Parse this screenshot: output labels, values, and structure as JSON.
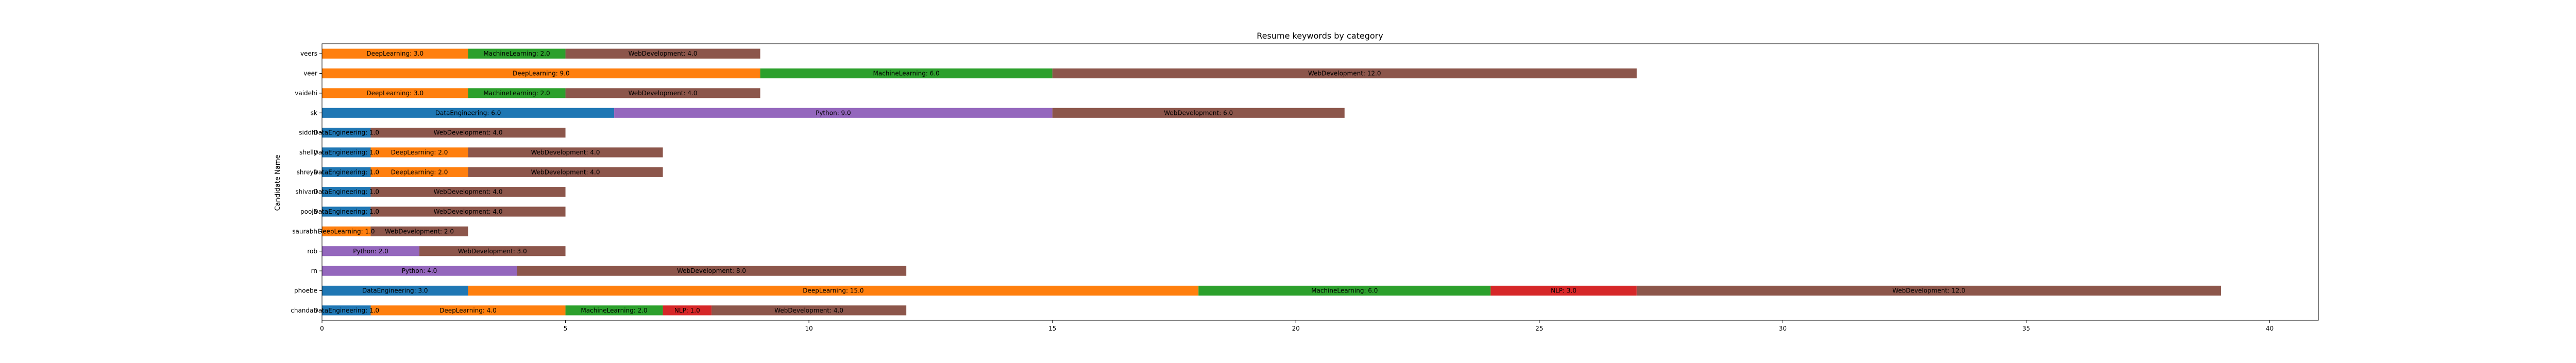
{
  "chart_data": {
    "type": "bar",
    "orientation": "horizontal",
    "stacked": true,
    "title": "Resume keywords by category",
    "xlabel": "",
    "ylabel": "Candidate Name",
    "xlim": [
      0,
      41
    ],
    "xticks": [
      0,
      5,
      10,
      15,
      20,
      25,
      30,
      35,
      40
    ],
    "grid": false,
    "legend": "none",
    "categories": [
      "chandan",
      "phoebe",
      "rn",
      "rob",
      "saurabh",
      "pooja",
      "shivani",
      "shreya",
      "shelly",
      "siddhi",
      "sk",
      "vaidehi",
      "veer",
      "veers"
    ],
    "series": [
      {
        "name": "DataEngineering",
        "color": "#1f77b4",
        "values": [
          1,
          3,
          0,
          0,
          0,
          1,
          1,
          1,
          1,
          1,
          6,
          0,
          0,
          0
        ]
      },
      {
        "name": "DeepLearning",
        "color": "#ff7f0e",
        "values": [
          4,
          15,
          0,
          0,
          1,
          0,
          0,
          2,
          2,
          0,
          0,
          3,
          9,
          3
        ]
      },
      {
        "name": "MachineLearning",
        "color": "#2ca02c",
        "values": [
          2,
          6,
          0,
          0,
          0,
          0,
          0,
          0,
          0,
          0,
          0,
          2,
          6,
          2
        ]
      },
      {
        "name": "NLP",
        "color": "#d62728",
        "values": [
          1,
          3,
          0,
          0,
          0,
          0,
          0,
          0,
          0,
          0,
          0,
          0,
          0,
          0
        ]
      },
      {
        "name": "Python",
        "color": "#9467bd",
        "values": [
          0,
          0,
          4,
          2,
          0,
          0,
          0,
          0,
          0,
          0,
          9,
          0,
          0,
          0
        ]
      },
      {
        "name": "WebDevelopment",
        "color": "#8c564b",
        "values": [
          4,
          12,
          8,
          3,
          2,
          4,
          4,
          4,
          4,
          4,
          6,
          4,
          12,
          4
        ]
      }
    ],
    "segment_labels": [
      [
        "DataEngineering: 1.0",
        "DeepLearning: 4.0",
        "MachineLearning: 2.0",
        "NLP: 1.0",
        "",
        "WebDevelopment: 4.0"
      ],
      [
        "DataEngineering: 3.0",
        "DeepLearning: 15.0",
        "MachineLearning: 6.0",
        "NLP: 3.0",
        "",
        "WebDevelopment: 12.0"
      ],
      [
        "",
        "",
        "",
        "",
        "Python: 4.0",
        "WebDevelopment: 8.0"
      ],
      [
        "",
        "",
        "",
        "",
        "Python: 2.0",
        "WebDevelopment: 3.0"
      ],
      [
        "",
        "DeepLearning: 1.0",
        "",
        "",
        "",
        "WebDevelopment: 2.0"
      ],
      [
        "DataEngineering: 1.0",
        "",
        "",
        "",
        "",
        "WebDevelopment: 4.0"
      ],
      [
        "DataEngineering: 1.0",
        "",
        "",
        "",
        "",
        "WebDevelopment: 4.0"
      ],
      [
        "DataEngineering: 1.0",
        "DeepLearning: 2.0",
        "",
        "",
        "",
        "WebDevelopment: 4.0"
      ],
      [
        "DataEngineering: 1.0",
        "DeepLearning: 2.0",
        "",
        "",
        "",
        "WebDevelopment: 4.0"
      ],
      [
        "DataEngineering: 1.0",
        "",
        "",
        "",
        "",
        "WebDevelopment: 4.0"
      ],
      [
        "DataEngineering: 6.0",
        "",
        "",
        "",
        "Python: 9.0",
        "WebDevelopment: 6.0"
      ],
      [
        "",
        "DeepLearning: 3.0",
        "MachineLearning: 2.0",
        "",
        "",
        "WebDevelopment: 4.0"
      ],
      [
        "",
        "DeepLearning: 9.0",
        "MachineLearning: 6.0",
        "",
        "",
        "WebDevelopment: 12.0"
      ],
      [
        "",
        "DeepLearning: 3.0",
        "MachineLearning: 2.0",
        "",
        "",
        "WebDevelopment: 4.0"
      ]
    ]
  }
}
